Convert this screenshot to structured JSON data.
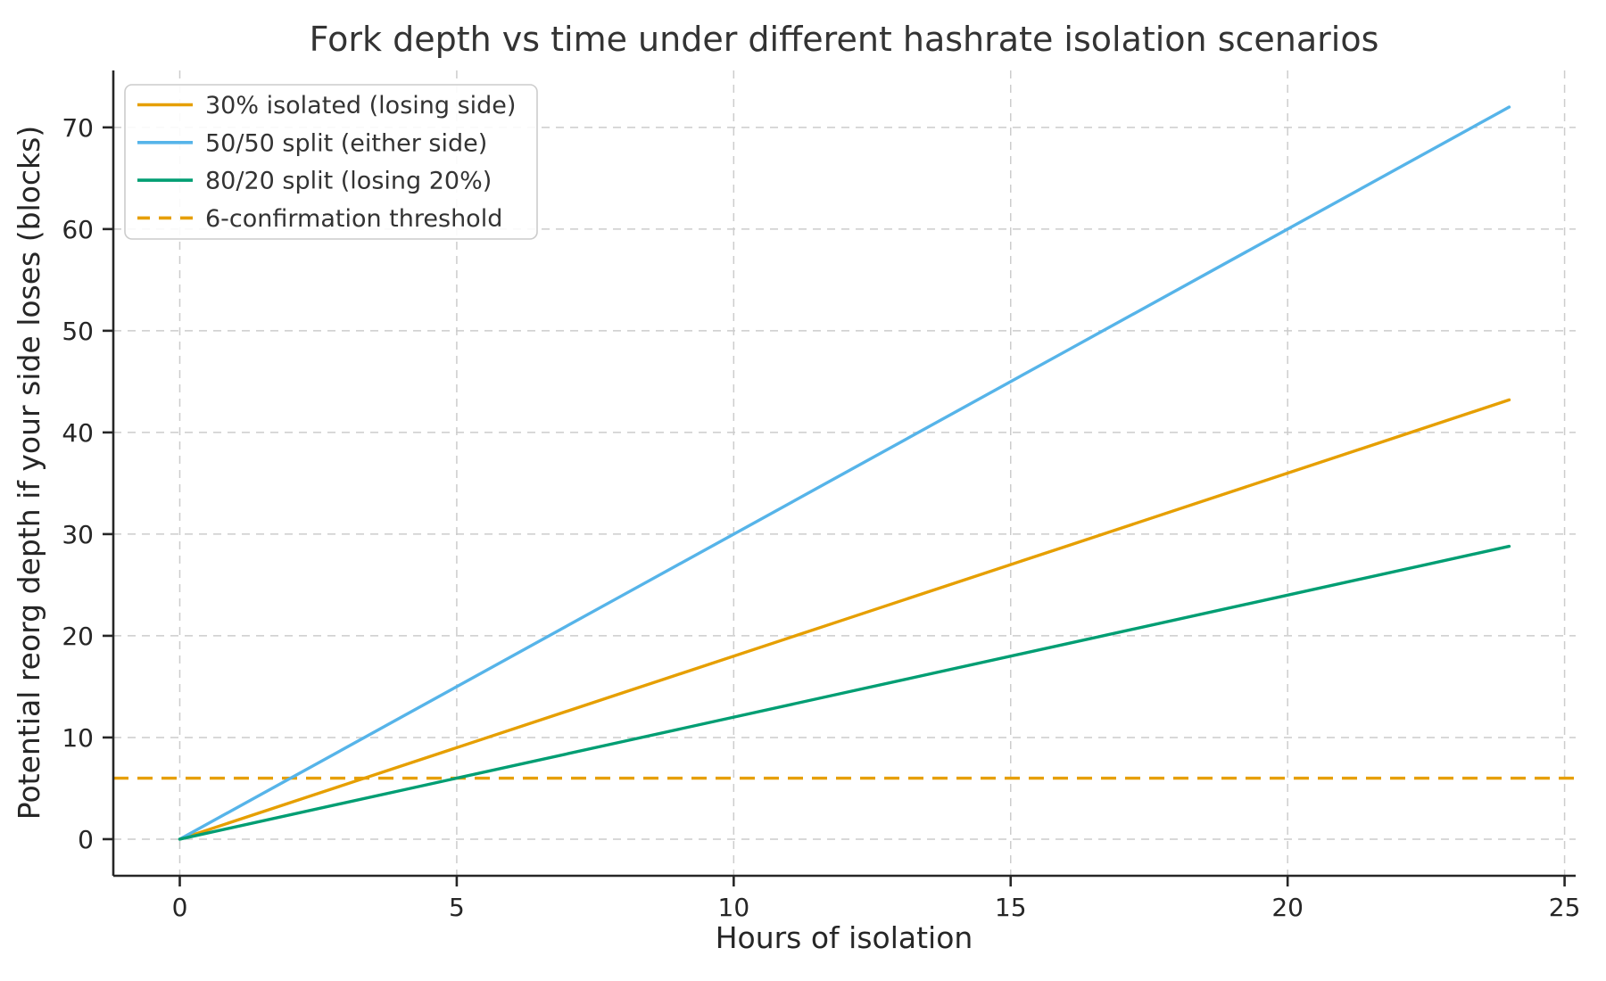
{
  "chart_data": {
    "type": "line",
    "title": "Fork depth vs time under different hashrate isolation scenarios",
    "xlabel": "Hours of isolation",
    "ylabel": "Potential reorg depth if your side loses (blocks)",
    "x": [
      0,
      4,
      8,
      12,
      16,
      20,
      24
    ],
    "series": [
      {
        "name": "30% isolated (losing side)",
        "color": "#E69F00",
        "style": "solid",
        "values": [
          0,
          7.2,
          14.4,
          21.6,
          28.8,
          36,
          43.2
        ]
      },
      {
        "name": "50/50 split (either side)",
        "color": "#56B4E9",
        "style": "solid",
        "values": [
          0,
          12,
          24,
          36,
          48,
          60,
          72
        ]
      },
      {
        "name": "80/20 split (losing 20%)",
        "color": "#009E73",
        "style": "solid",
        "values": [
          0,
          4.8,
          9.6,
          14.4,
          19.2,
          24,
          28.8
        ]
      }
    ],
    "threshold": {
      "name": "6-confirmation threshold",
      "color": "#E69F00",
      "style": "dashed",
      "y": 6
    },
    "xlim": [
      -1.2,
      25.2
    ],
    "ylim": [
      -3.6,
      75.6
    ],
    "xticks": [
      0,
      5,
      10,
      15,
      20,
      25
    ],
    "yticks": [
      0,
      10,
      20,
      30,
      40,
      50,
      60,
      70
    ],
    "grid": true,
    "legend_position": "upper-left"
  },
  "style": {
    "background": "#FFFFFF",
    "grid_color": "#CCCCCC",
    "spine_color": "#262626",
    "tick_color": "#262626",
    "text_color": "#262626",
    "title_color": "#333333",
    "legend_border_color": "#CCCCCC",
    "legend_background": "#FFFFFF"
  }
}
